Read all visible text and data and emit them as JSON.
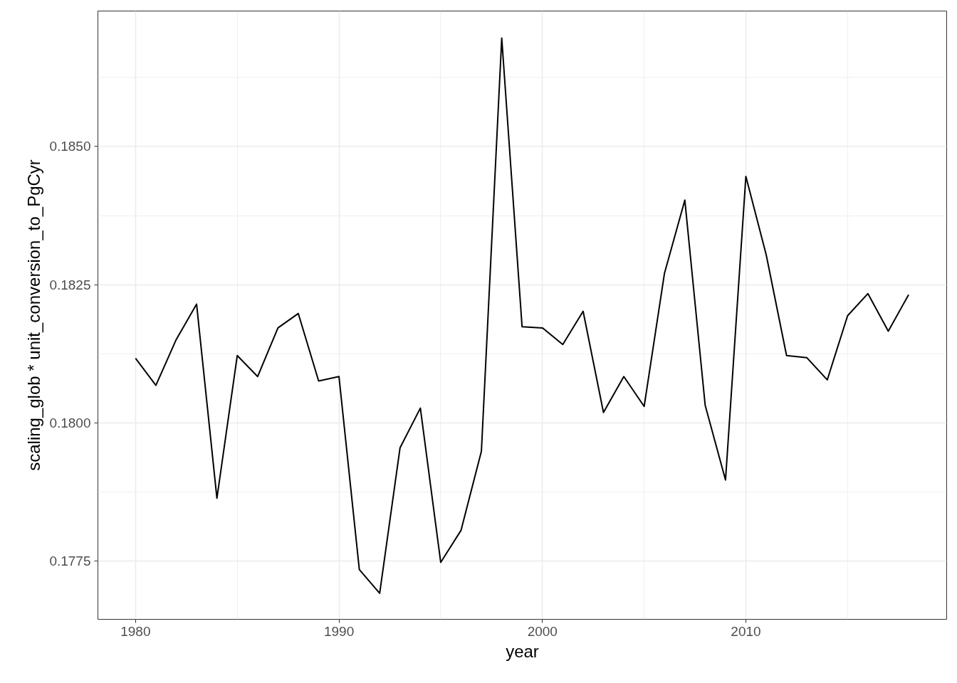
{
  "chart_data": {
    "type": "line",
    "xlabel": "year",
    "ylabel": "scaling_glob * unit_conversion_to_PgCyr",
    "x": [
      1980,
      1981,
      1982,
      1983,
      1984,
      1985,
      1986,
      1987,
      1988,
      1989,
      1990,
      1991,
      1992,
      1993,
      1994,
      1995,
      1996,
      1997,
      1998,
      1999,
      2000,
      2001,
      2002,
      2003,
      2004,
      2005,
      2006,
      2007,
      2008,
      2009,
      2010,
      2011,
      2012,
      2013,
      2014,
      2015,
      2016,
      2017,
      2018
    ],
    "series": [
      {
        "color": "#000000",
        "values": [
          0.18117,
          0.18068,
          0.18151,
          0.18215,
          0.17864,
          0.18122,
          0.18084,
          0.18172,
          0.18198,
          0.18076,
          0.18084,
          0.17735,
          0.17692,
          0.17955,
          0.18027,
          0.17748,
          0.17806,
          0.17949,
          0.18696,
          0.18174,
          0.18172,
          0.18142,
          0.18202,
          0.18019,
          0.18084,
          0.1803,
          0.18271,
          0.18403,
          0.18032,
          0.17897,
          0.18446,
          0.18304,
          0.18122,
          0.18118,
          0.18078,
          0.18194,
          0.18234,
          0.18166,
          0.18232
        ]
      }
    ],
    "xlim": [
      1978.15,
      2019.87
    ],
    "ylim": [
      0.17645,
      0.18745
    ],
    "xticks": [
      1980,
      1990,
      2000,
      2010
    ],
    "yticks": [
      {
        "value": 0.1775,
        "label": "0.1775"
      },
      {
        "value": 0.18,
        "label": "0.1800"
      },
      {
        "value": 0.1825,
        "label": "0.1825"
      },
      {
        "value": 0.185,
        "label": "0.1850"
      }
    ],
    "grid": true,
    "line_style": "solid"
  }
}
